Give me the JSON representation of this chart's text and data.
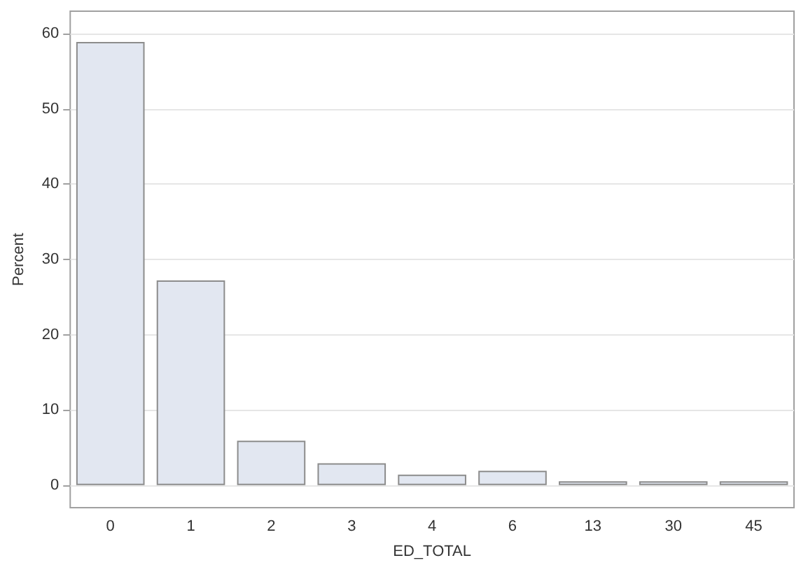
{
  "chart_data": {
    "type": "bar",
    "xlabel": "ED_TOTAL",
    "ylabel": "Percent",
    "categories": [
      "0",
      "1",
      "2",
      "3",
      "4",
      "6",
      "13",
      "30",
      "45"
    ],
    "values": [
      58.9,
      27.2,
      5.9,
      2.9,
      1.4,
      1.9,
      0.5,
      0.5,
      0.5
    ],
    "color": "#e2e7f1",
    "ylim": [
      -3,
      63
    ],
    "yticks": [
      0,
      10,
      20,
      30,
      40,
      50,
      60
    ],
    "grid": "y"
  }
}
